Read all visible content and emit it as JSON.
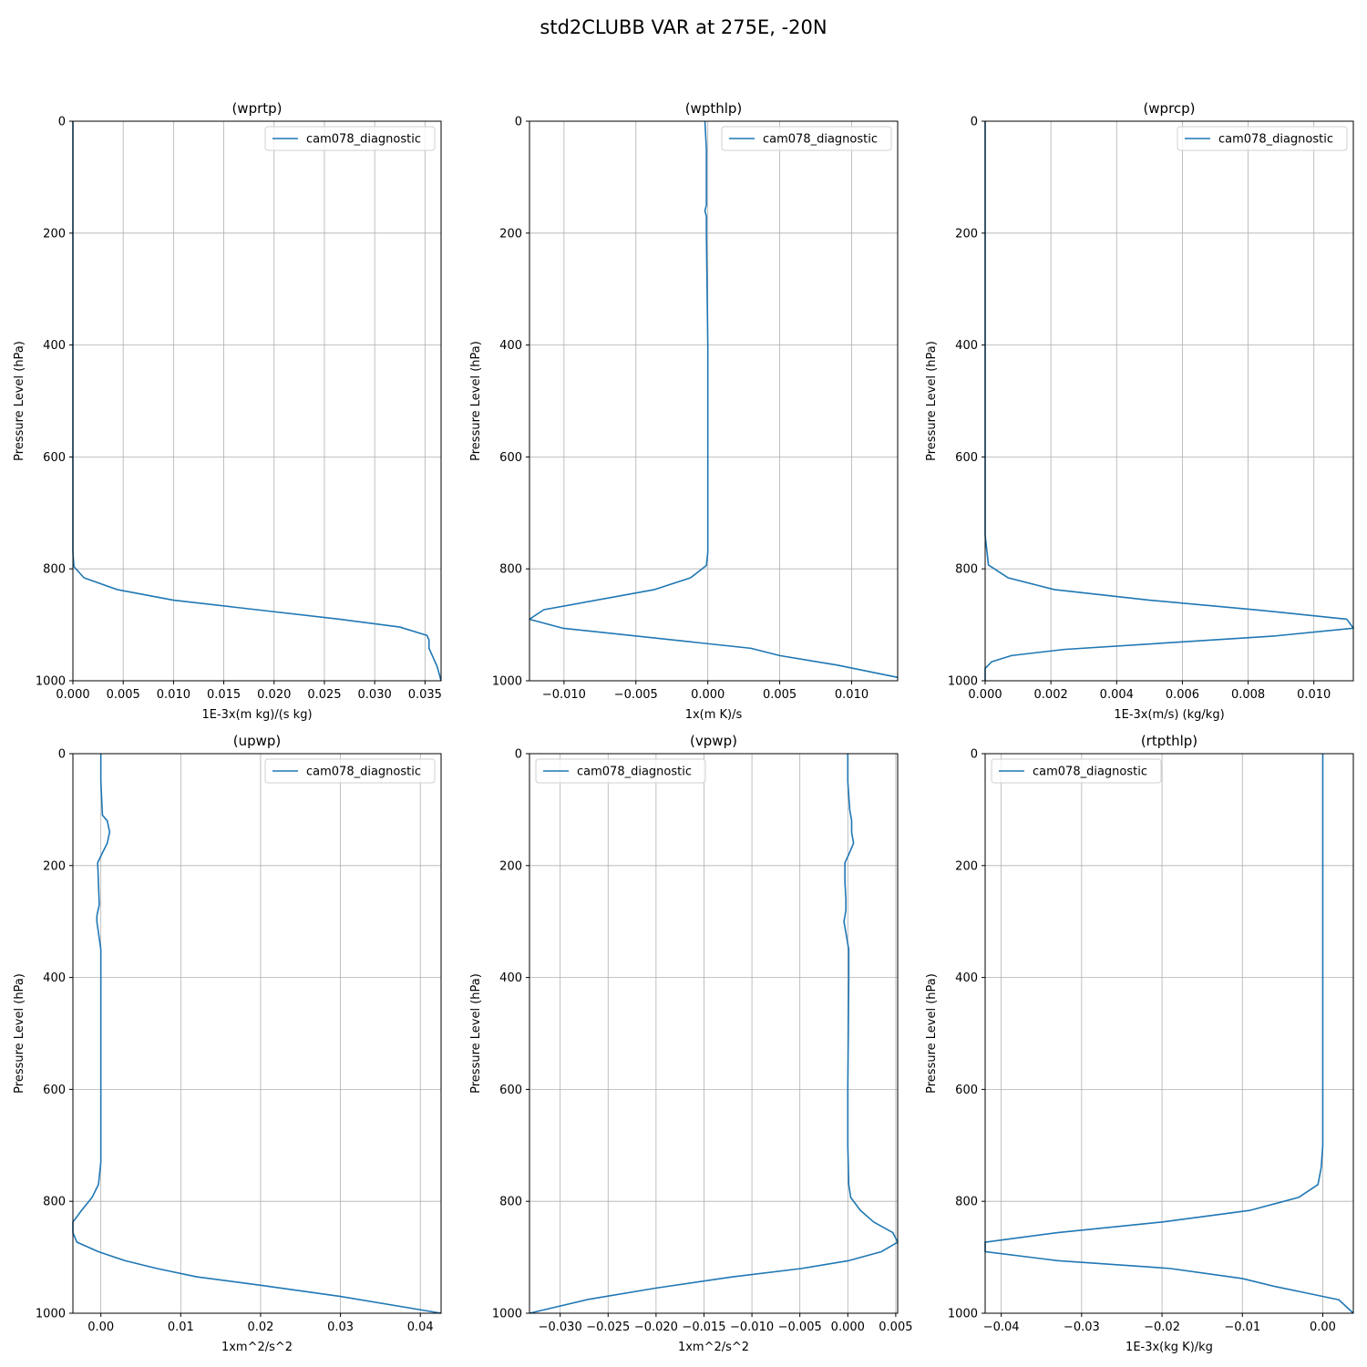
{
  "figure": {
    "title": "std2CLUBB VAR at 275E, -20N",
    "line_color": "#1f77b4"
  },
  "chart_data": [
    {
      "type": "line",
      "title": "(wprtp)",
      "xlabel": "1E-3x(m kg)/(s kg)",
      "ylabel": "Pressure Level (hPa)",
      "xlim": [
        0,
        0.0366
      ],
      "ylim": [
        1000,
        0
      ],
      "y_inverted": true,
      "grid": true,
      "legend_position": "upper right",
      "xticks": [
        0,
        0.005,
        0.01,
        0.015,
        0.02,
        0.025,
        0.03,
        0.035
      ],
      "xtick_labels": [
        "0.000",
        "0.005",
        "0.010",
        "0.015",
        "0.020",
        "0.025",
        "0.030",
        "0.035"
      ],
      "yticks": [
        0,
        200,
        400,
        600,
        800,
        1000
      ],
      "ytick_labels": [
        "0",
        "200",
        "400",
        "600",
        "800",
        "1000"
      ],
      "series": [
        {
          "name": "cam078_diagnostic",
          "x": [
            0,
            0,
            0,
            0,
            0,
            0,
            0,
            0.0001,
            0.0011,
            0.0044,
            0.01,
            0.0265,
            0.0325,
            0.0352,
            0.0354,
            0.0354,
            0.0358,
            0.0362,
            0.0366
          ],
          "y": [
            0,
            100,
            200,
            400,
            600,
            700,
            770,
            796,
            816,
            837,
            856,
            890,
            904,
            919,
            927,
            942,
            958,
            974,
            1000
          ]
        }
      ]
    },
    {
      "type": "line",
      "title": "(wpthlp)",
      "xlabel": "1x(m K)/s",
      "ylabel": "Pressure Level (hPa)",
      "xlim": [
        -0.0124,
        0.0132
      ],
      "ylim": [
        1000,
        0
      ],
      "y_inverted": true,
      "grid": true,
      "legend_position": "upper right",
      "xticks": [
        -0.01,
        -0.005,
        0,
        0.005,
        0.01
      ],
      "xtick_labels": [
        "−0.010",
        "−0.005",
        "0.000",
        "0.005",
        "0.010"
      ],
      "yticks": [
        0,
        200,
        400,
        600,
        800,
        1000
      ],
      "ytick_labels": [
        "0",
        "200",
        "400",
        "600",
        "800",
        "1000"
      ],
      "series": [
        {
          "name": "cam078_diagnostic",
          "x": [
            -0.0002,
            -0.0001,
            -0.0001,
            -0.0002,
            -0.0001,
            -0.0001,
            0,
            0,
            0,
            0,
            -0.0001,
            -0.0012,
            -0.0037,
            -0.0114,
            -0.0124,
            -0.0101,
            0.003,
            0.005,
            0.009,
            0.0132
          ],
          "y": [
            0,
            50,
            150,
            160,
            170,
            200,
            400,
            600,
            700,
            770,
            794,
            816,
            837,
            873,
            890,
            906,
            942,
            955,
            972,
            994
          ]
        }
      ]
    },
    {
      "type": "line",
      "title": "(wprcp)",
      "xlabel": "1E-3x(m/s) (kg/kg)",
      "ylabel": "Pressure Level (hPa)",
      "xlim": [
        0,
        0.0112
      ],
      "ylim": [
        1000,
        0
      ],
      "y_inverted": true,
      "grid": true,
      "legend_position": "upper right",
      "xticks": [
        0,
        0.002,
        0.004,
        0.006,
        0.008,
        0.01
      ],
      "xtick_labels": [
        "0.000",
        "0.002",
        "0.004",
        "0.006",
        "0.008",
        "0.010"
      ],
      "yticks": [
        0,
        200,
        400,
        600,
        800,
        1000
      ],
      "ytick_labels": [
        "0",
        "200",
        "400",
        "600",
        "800",
        "1000"
      ],
      "series": [
        {
          "name": "cam078_diagnostic",
          "x": [
            0,
            0,
            0,
            0,
            0,
            0,
            0,
            0.0001,
            0.0007,
            0.0021,
            0.005,
            0.0082,
            0.011,
            0.0112,
            0.0088,
            0.0024,
            0.0008,
            0.0002,
            0,
            0
          ],
          "y": [
            0,
            100,
            200,
            400,
            600,
            700,
            740,
            793,
            816,
            837,
            856,
            873,
            890,
            906,
            920,
            944,
            955,
            966,
            978,
            1000
          ]
        }
      ]
    },
    {
      "type": "line",
      "title": "(upwp)",
      "xlabel": "1xm^2/s^2",
      "ylabel": "Pressure Level (hPa)",
      "xlim": [
        -0.0035,
        0.0426
      ],
      "ylim": [
        1000,
        0
      ],
      "y_inverted": true,
      "grid": true,
      "legend_position": "upper right",
      "xticks": [
        0,
        0.01,
        0.02,
        0.03,
        0.04
      ],
      "xtick_labels": [
        "0.00",
        "0.01",
        "0.02",
        "0.03",
        "0.04"
      ],
      "yticks": [
        0,
        200,
        400,
        600,
        800,
        1000
      ],
      "ytick_labels": [
        "0",
        "200",
        "400",
        "600",
        "800",
        "1000"
      ],
      "series": [
        {
          "name": "cam078_diagnostic",
          "x": [
            0,
            0,
            0.0002,
            0.0008,
            0.0011,
            0.0008,
            0.0001,
            -0.0004,
            -0.0003,
            -0.0002,
            -0.0005,
            -0.0005,
            0,
            0,
            0,
            0,
            -0.0003,
            -0.0011,
            -0.0024,
            -0.0035,
            -0.0035,
            -0.003,
            -0.0003,
            0.003,
            0.007,
            0.012,
            0.02,
            0.03,
            0.0426
          ],
          "y": [
            0,
            50,
            110,
            120,
            140,
            160,
            180,
            195,
            230,
            270,
            290,
            300,
            350,
            400,
            600,
            730,
            770,
            793,
            816,
            837,
            856,
            873,
            890,
            906,
            920,
            935,
            950,
            970,
            1000
          ]
        }
      ]
    },
    {
      "type": "line",
      "title": "(vpwp)",
      "xlabel": "1xm^2/s^2",
      "ylabel": "Pressure Level (hPa)",
      "xlim": [
        -0.0332,
        0.0052
      ],
      "ylim": [
        1000,
        0
      ],
      "y_inverted": true,
      "grid": true,
      "legend_position": "upper left",
      "xticks": [
        -0.03,
        -0.025,
        -0.02,
        -0.015,
        -0.01,
        -0.005,
        0,
        0.005
      ],
      "xtick_labels": [
        "−0.030",
        "−0.025",
        "−0.020",
        "−0.015",
        "−0.010",
        "−0.005",
        "0.000",
        "0.005"
      ],
      "yticks": [
        0,
        200,
        400,
        600,
        800,
        1000
      ],
      "ytick_labels": [
        "0",
        "200",
        "400",
        "600",
        "800",
        "1000"
      ],
      "series": [
        {
          "name": "cam078_diagnostic",
          "x": [
            0,
            0,
            0.0002,
            0.0004,
            0.0004,
            0.0006,
            0.0001,
            -0.0003,
            -0.0003,
            -0.0002,
            -0.0002,
            -0.0004,
            0.0001,
            0.0001,
            0,
            0,
            0.0001,
            0.0003,
            0.0013,
            0.0027,
            0.0047,
            0.0052,
            0.0035,
            0.0001,
            -0.0048,
            -0.012,
            -0.02,
            -0.027,
            -0.0332
          ],
          "y": [
            0,
            50,
            100,
            120,
            140,
            160,
            180,
            195,
            230,
            260,
            280,
            300,
            350,
            400,
            600,
            700,
            770,
            793,
            816,
            837,
            856,
            873,
            890,
            906,
            920,
            935,
            955,
            975,
            1000
          ]
        }
      ]
    },
    {
      "type": "line",
      "title": "(rtpthlp)",
      "xlabel": "1E-3x(kg K)/kg",
      "ylabel": "Pressure Level (hPa)",
      "xlim": [
        -0.042,
        0.0038
      ],
      "ylim": [
        1000,
        0
      ],
      "y_inverted": true,
      "grid": true,
      "legend_position": "upper left",
      "xticks": [
        -0.04,
        -0.03,
        -0.02,
        -0.01,
        0
      ],
      "xtick_labels": [
        "−0.04",
        "−0.03",
        "−0.02",
        "−0.01",
        "0.00"
      ],
      "yticks": [
        0,
        200,
        400,
        600,
        800,
        1000
      ],
      "ytick_labels": [
        "0",
        "200",
        "400",
        "600",
        "800",
        "1000"
      ],
      "series": [
        {
          "name": "cam078_diagnostic",
          "x": [
            0,
            0,
            0,
            0,
            0,
            -0.0002,
            -0.0006,
            -0.003,
            -0.009,
            -0.02,
            -0.033,
            -0.042,
            -0.042,
            -0.033,
            -0.019,
            -0.01,
            -0.006,
            -0.002,
            0.002,
            0.0038
          ],
          "y": [
            0,
            200,
            400,
            600,
            700,
            740,
            770,
            793,
            816,
            837,
            856,
            873,
            890,
            906,
            920,
            938,
            952,
            964,
            976,
            1000
          ]
        }
      ]
    }
  ]
}
